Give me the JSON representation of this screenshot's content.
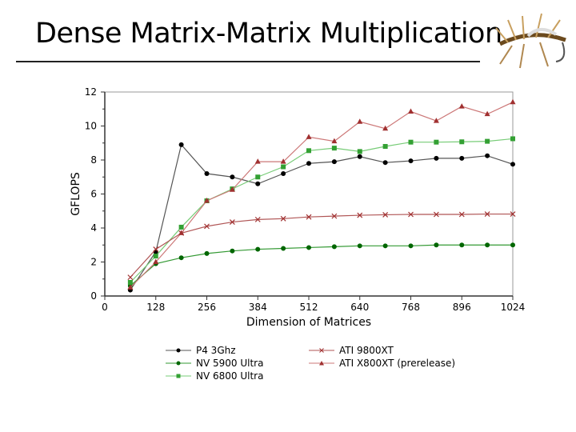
{
  "slide": {
    "title": "Dense Matrix-Matrix Multiplication"
  },
  "chart_data": {
    "type": "line",
    "title": "",
    "xlabel": "Dimension of Matrices",
    "ylabel": "GFLOPS",
    "xlim": [
      0,
      1024
    ],
    "ylim": [
      0,
      12
    ],
    "xticks": [
      0,
      128,
      256,
      384,
      512,
      640,
      768,
      896,
      1024
    ],
    "yticks": [
      0,
      2,
      4,
      6,
      8,
      10,
      12
    ],
    "grid": false,
    "legend_position": "bottom",
    "x": [
      64,
      128,
      192,
      256,
      320,
      384,
      448,
      512,
      576,
      640,
      704,
      768,
      832,
      896,
      960,
      1024
    ],
    "series": [
      {
        "name": "P4 3Ghz",
        "color": "#000000",
        "line": "#555555",
        "marker": "circle",
        "values": [
          0.35,
          2.6,
          8.9,
          7.2,
          7.0,
          6.6,
          7.2,
          7.8,
          7.9,
          8.2,
          7.85,
          7.95,
          8.1,
          8.1,
          8.25,
          7.75
        ]
      },
      {
        "name": "NV 5900 Ultra",
        "color": "#006600",
        "line": "#339933",
        "marker": "circle",
        "values": [
          0.6,
          1.9,
          2.25,
          2.5,
          2.65,
          2.75,
          2.8,
          2.85,
          2.9,
          2.95,
          2.95,
          2.95,
          3.0,
          3.0,
          3.0,
          3.0
        ]
      },
      {
        "name": "NV 6800 Ultra",
        "color": "#33a033",
        "line": "#77cc77",
        "marker": "square",
        "values": [
          0.8,
          2.35,
          4.05,
          5.6,
          6.3,
          7.0,
          7.6,
          8.55,
          8.7,
          8.5,
          8.8,
          9.05,
          9.05,
          9.07,
          9.1,
          9.25
        ]
      },
      {
        "name": "ATI 9800XT",
        "color": "#a03030",
        "line": "#b05555",
        "marker": "x",
        "values": [
          1.1,
          2.75,
          3.7,
          4.1,
          4.35,
          4.5,
          4.55,
          4.65,
          4.7,
          4.75,
          4.78,
          4.8,
          4.8,
          4.8,
          4.82,
          4.82
        ]
      },
      {
        "name": "ATI X800XT (prerelease)",
        "color": "#a03030",
        "line": "#cc7777",
        "marker": "triangle",
        "values": [
          0.5,
          2.0,
          3.7,
          5.6,
          6.25,
          7.9,
          7.9,
          9.35,
          9.1,
          10.25,
          9.85,
          10.85,
          10.3,
          11.15,
          10.7,
          11.4
        ]
      }
    ]
  }
}
